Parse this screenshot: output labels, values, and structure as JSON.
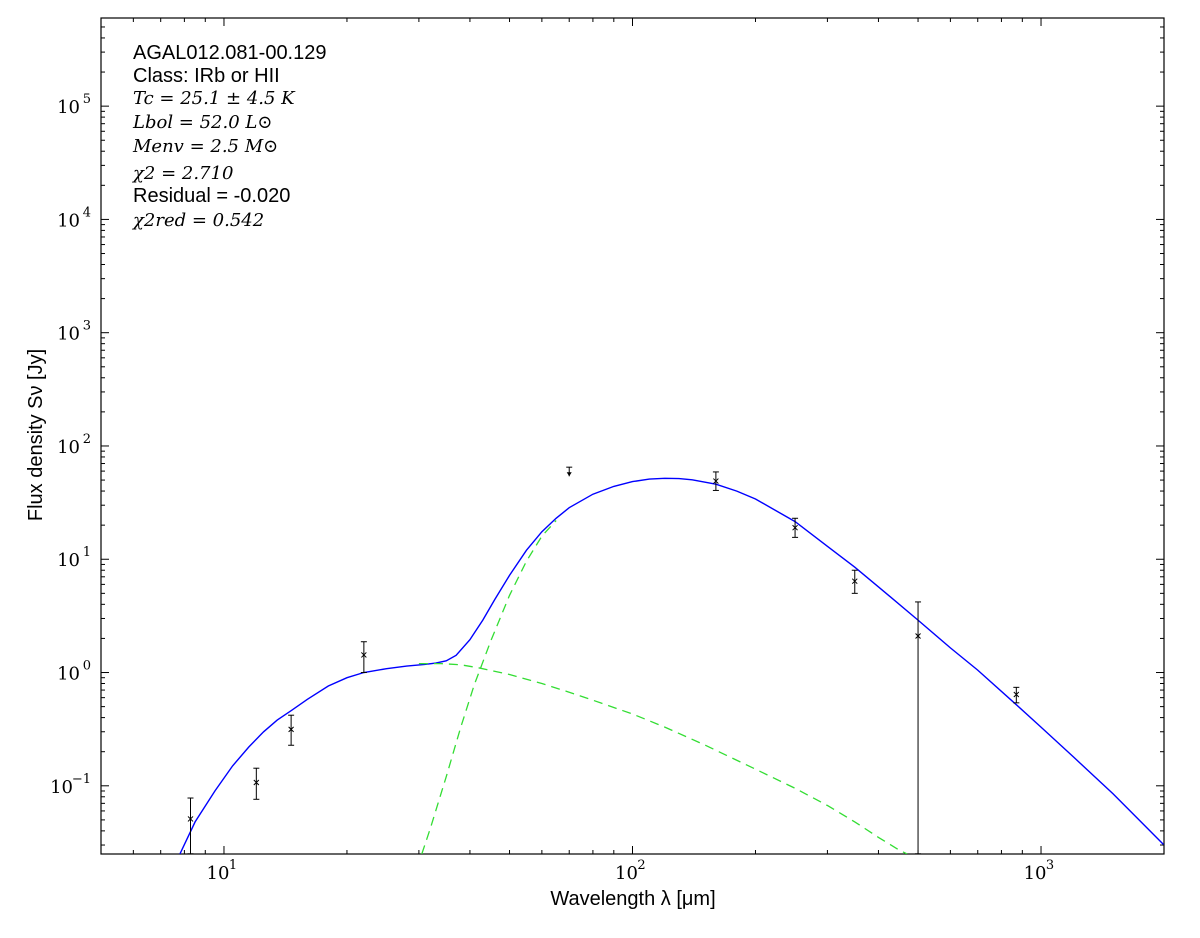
{
  "chart_data": {
    "type": "scatter",
    "x_scale": "log",
    "y_scale": "log",
    "xlabel": "Wavelength λ [μm]",
    "ylabel": "Flux density Sν [Jy]",
    "xlim": [
      5,
      2000
    ],
    "ylim": [
      0.025,
      600000
    ],
    "x_ticks": [
      {
        "value": 10,
        "base": "10",
        "exp": "1"
      },
      {
        "value": 100,
        "base": "10",
        "exp": "2"
      },
      {
        "value": 1000,
        "base": "10",
        "exp": "3"
      }
    ],
    "y_ticks": [
      {
        "value": 0.1,
        "base": "10",
        "exp": "−1"
      },
      {
        "value": 1,
        "base": "10",
        "exp": "0"
      },
      {
        "value": 10,
        "base": "10",
        "exp": "1"
      },
      {
        "value": 100,
        "base": "10",
        "exp": "2"
      },
      {
        "value": 1000,
        "base": "10",
        "exp": "3"
      },
      {
        "value": 10000,
        "base": "10",
        "exp": "4"
      },
      {
        "value": 100000,
        "base": "10",
        "exp": "5"
      }
    ],
    "grid": false,
    "annotations": [
      "AGAL012.081-00.129",
      "Class: IRb or HII",
      "Tc = 25.1 ± 4.5 K",
      "Lbol = 52.0 L⊙",
      "Menv = 2.5 M⊙",
      "χ2 = 2.710",
      "Residual = -0.020",
      "χ2red = 0.542"
    ],
    "colors": {
      "total_fit": "#0000ff",
      "components": "#33dd33",
      "points": "#000000"
    },
    "points": [
      {
        "x": 8.28,
        "y": 0.051,
        "ylo": 0.0251,
        "yhi": 0.078,
        "upper_limit": false
      },
      {
        "x": 12.0,
        "y": 0.107,
        "ylo": 0.076,
        "yhi": 0.143,
        "upper_limit": false
      },
      {
        "x": 14.6,
        "y": 0.315,
        "ylo": 0.228,
        "yhi": 0.42,
        "upper_limit": false
      },
      {
        "x": 22.0,
        "y": 1.43,
        "ylo": 1.0,
        "yhi": 1.87,
        "upper_limit": false
      },
      {
        "x": 70.0,
        "y": 65.0,
        "ylo": 54.0,
        "yhi": 65.0,
        "upper_limit": true
      },
      {
        "x": 160.0,
        "y": 49.0,
        "ylo": 40.5,
        "yhi": 59.0,
        "upper_limit": false
      },
      {
        "x": 250.0,
        "y": 19.0,
        "ylo": 15.6,
        "yhi": 23.0,
        "upper_limit": false
      },
      {
        "x": 350.0,
        "y": 6.4,
        "ylo": 5.0,
        "yhi": 8.0,
        "upper_limit": false
      },
      {
        "x": 500.0,
        "y": 2.1,
        "ylo": 0.0251,
        "yhi": 4.2,
        "upper_limit": false
      },
      {
        "x": 870.0,
        "y": 0.64,
        "ylo": 0.54,
        "yhi": 0.74,
        "upper_limit": false
      }
    ],
    "series": [
      {
        "style": "solid",
        "x": [
          7.8,
          8.5,
          9.5,
          10.5,
          11.5,
          12.5,
          13.5,
          14.6,
          16,
          18,
          20,
          22,
          25,
          28,
          31,
          33,
          35,
          37,
          40,
          43,
          46,
          50,
          55,
          60,
          65,
          70,
          80,
          90,
          100,
          110,
          120,
          130,
          140,
          160,
          180,
          200,
          250,
          300,
          350,
          400,
          500,
          600,
          700,
          870,
          1000,
          1200,
          1500,
          2000
        ],
        "y": [
          0.025,
          0.048,
          0.09,
          0.15,
          0.22,
          0.3,
          0.38,
          0.46,
          0.58,
          0.76,
          0.9,
          1.0,
          1.08,
          1.14,
          1.18,
          1.21,
          1.27,
          1.42,
          1.95,
          2.9,
          4.4,
          7.2,
          12.0,
          17.5,
          23.0,
          28.5,
          37.5,
          44.0,
          48.5,
          51.0,
          51.8,
          51.5,
          50.3,
          46.0,
          40.0,
          34.0,
          21.5,
          13.0,
          8.5,
          5.7,
          2.9,
          1.65,
          1.05,
          0.52,
          0.33,
          0.18,
          0.085,
          0.03
        ]
      },
      {
        "style": "dashed",
        "x": [
          30.5,
          32,
          35,
          38,
          41,
          45,
          50,
          55,
          60,
          65
        ],
        "y": [
          0.025,
          0.042,
          0.12,
          0.33,
          0.78,
          1.9,
          4.8,
          9.6,
          16.0,
          22.0
        ]
      },
      {
        "style": "dashed",
        "x": [
          30,
          34,
          38,
          42,
          50,
          60,
          70,
          80,
          100,
          120,
          150,
          200,
          250,
          300,
          350,
          400,
          450,
          470
        ],
        "y": [
          1.2,
          1.2,
          1.17,
          1.1,
          0.96,
          0.8,
          0.67,
          0.57,
          0.43,
          0.33,
          0.23,
          0.14,
          0.095,
          0.067,
          0.048,
          0.035,
          0.027,
          0.025
        ]
      }
    ]
  }
}
